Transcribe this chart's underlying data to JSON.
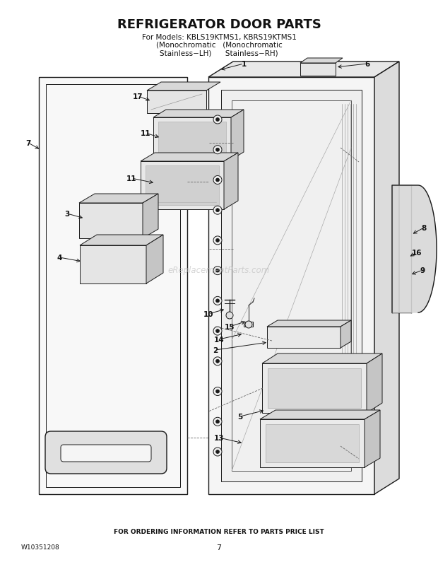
{
  "title": "REFRIGERATOR DOOR PARTS",
  "subtitle_line1": "For Models: KBLS19KTMS1, KBRS19KTMS1",
  "subtitle_line2": "(Monochromatic   (Monochromatic",
  "subtitle_line3": "Stainless−LH)      Stainless−RH)",
  "footer_center": "FOR ORDERING INFORMATION REFER TO PARTS PRICE LIST",
  "footer_left": "W10351208",
  "footer_page": "7",
  "bg_color": "#ffffff",
  "line_color": "#1a1a1a",
  "text_color": "#111111",
  "watermark": "eReplacementParts.com",
  "title_fontsize": 13,
  "subtitle_fontsize": 7.5,
  "label_fontsize": 7.5,
  "footer_fontsize": 6.5
}
